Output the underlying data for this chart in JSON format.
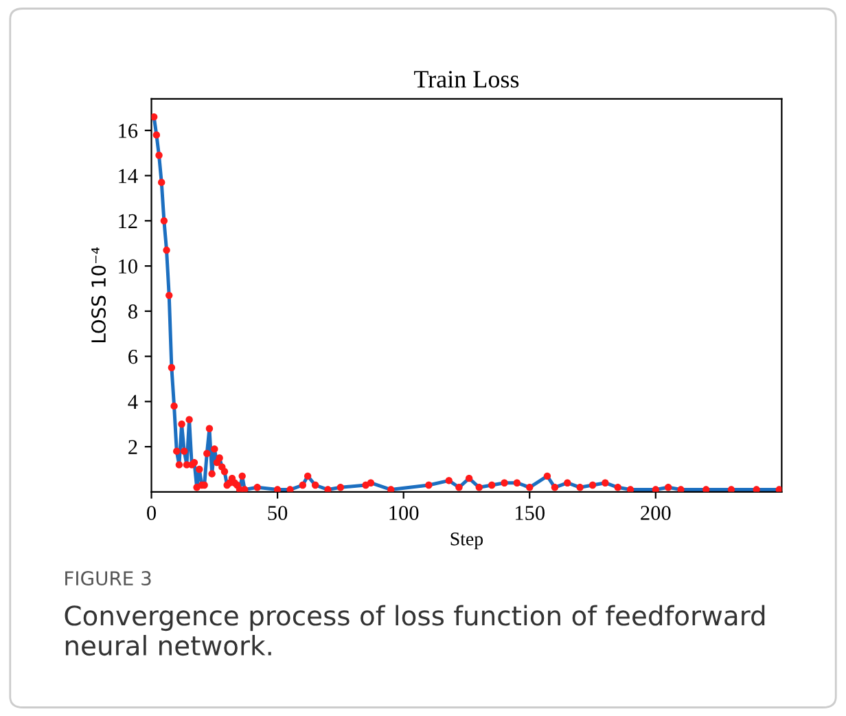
{
  "chart_data": {
    "type": "line",
    "title": "Train Loss",
    "xlabel": "Step",
    "ylabel": "LOSS 10⁻⁴",
    "xlim": [
      0,
      250
    ],
    "ylim": [
      0,
      17.4
    ],
    "xticks": [
      0,
      50,
      100,
      150,
      200
    ],
    "yticks": [
      2,
      4,
      6,
      8,
      10,
      12,
      14,
      16
    ],
    "grid": false,
    "legend": false,
    "marker": "circle",
    "line_style": "solid",
    "x": [
      1,
      2,
      3,
      4,
      5,
      6,
      7,
      8,
      9,
      10,
      11,
      12,
      13,
      14,
      15,
      16,
      17,
      18,
      19,
      20,
      21,
      22,
      23,
      24,
      25,
      26,
      27,
      28,
      29,
      30,
      31,
      32,
      33,
      34,
      35,
      36,
      37,
      42,
      50,
      55,
      60,
      62,
      65,
      70,
      75,
      85,
      87,
      95,
      110,
      118,
      122,
      126,
      130,
      135,
      140,
      145,
      150,
      157,
      160,
      165,
      170,
      175,
      180,
      185,
      190,
      200,
      205,
      210,
      220,
      230,
      240,
      249
    ],
    "series": [
      {
        "color": "#1c6fc0",
        "colors": [
          "#ff1a1a",
          "#ff1a1a",
          "#ff1a1a",
          "#ff1a1a",
          "#ff1a1a",
          "#ff1a1a",
          "#ff1a1a",
          "#ff1a1a",
          "#ff1a1a",
          "#ff1a1a",
          "#ff1a1a",
          "#ff1a1a",
          "#ff1a1a",
          "#ff1a1a",
          "#ff1a1a",
          "#ff1a1a",
          "#ff1a1a",
          "#ff1a1a",
          "#ff1a1a",
          "#ff1a1a",
          "#ff1a1a",
          "#ff1a1a",
          "#ff1a1a",
          "#ff1a1a",
          "#ff1a1a",
          "#ff1a1a",
          "#ff1a1a",
          "#ff1a1a",
          "#ff1a1a",
          "#ff1a1a",
          "#ff1a1a",
          "#ff1a1a",
          "#ff1a1a",
          "#ff1a1a",
          "#ff1a1a",
          "#ff1a1a",
          "#ff1a1a",
          "#ff1a1a",
          "#ff1a1a",
          "#ff1a1a",
          "#ff1a1a",
          "#ff1a1a",
          "#ff1a1a",
          "#ff1a1a",
          "#ff1a1a",
          "#ff1a1a",
          "#ff1a1a",
          "#ff1a1a",
          "#ff1a1a",
          "#ff1a1a",
          "#ff1a1a",
          "#ff1a1a",
          "#ff1a1a",
          "#ff1a1a",
          "#ff1a1a",
          "#ff1a1a",
          "#ff1a1a",
          "#ff1a1a",
          "#ff1a1a",
          "#ff1a1a",
          "#ff1a1a",
          "#ff1a1a",
          "#ff1a1a",
          "#ff1a1a",
          "#ff1a1a",
          "#ff1a1a",
          "#ff1a1a",
          "#ff1a1a",
          "#ff1a1a",
          "#ff1a1a",
          "#ff1a1a",
          "#ff1a1a"
        ],
        "values": [
          16.6,
          15.8,
          14.9,
          13.7,
          12.0,
          10.7,
          8.7,
          5.5,
          3.8,
          1.8,
          1.2,
          3.0,
          1.8,
          1.2,
          3.2,
          1.2,
          1.3,
          0.2,
          1.0,
          0.3,
          0.3,
          1.7,
          2.8,
          0.8,
          1.9,
          1.3,
          1.5,
          1.1,
          0.9,
          0.3,
          0.4,
          0.6,
          0.4,
          0.3,
          0.1,
          0.7,
          0.1,
          0.2,
          0.1,
          0.1,
          0.3,
          0.7,
          0.3,
          0.1,
          0.2,
          0.3,
          0.4,
          0.1,
          0.3,
          0.5,
          0.2,
          0.6,
          0.2,
          0.3,
          0.4,
          0.4,
          0.2,
          0.7,
          0.2,
          0.4,
          0.2,
          0.3,
          0.4,
          0.2,
          0.1,
          0.1,
          0.2,
          0.1,
          0.1,
          0.1,
          0.1,
          0.1
        ]
      }
    ],
    "annotations": [
      "FIGURE 3",
      "Convergence process of loss function of feedforward neural network."
    ]
  }
}
